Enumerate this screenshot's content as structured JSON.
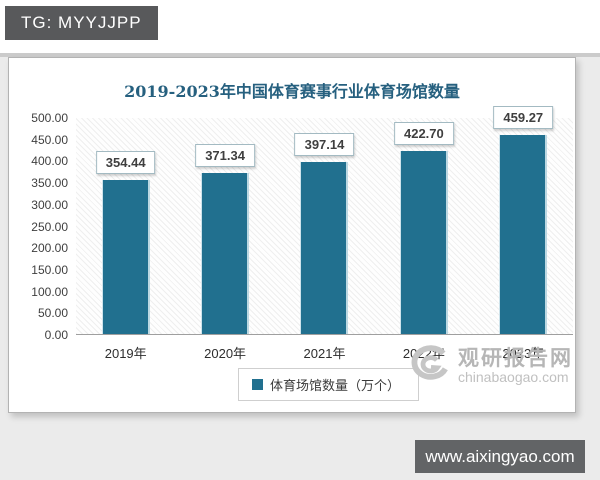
{
  "badges": {
    "tg": "TG: MYYJJPP",
    "url": "www.aixingyao.com"
  },
  "watermark": {
    "name": "观研报告网",
    "domain": "chinabaogao.com"
  },
  "chart_data": {
    "type": "bar",
    "title": "2019-2023年中国体育赛事行业体育场馆数量",
    "categories": [
      "2019年",
      "2020年",
      "2021年",
      "2022年",
      "2023年"
    ],
    "values": [
      354.44,
      371.34,
      397.14,
      422.7,
      459.27
    ],
    "ylim": [
      0,
      500
    ],
    "ytick_step": 50,
    "ytick_decimals": 2,
    "grid": false,
    "value_labels": true,
    "legend": {
      "label": "体育场馆数量（万个）",
      "position": "bottom"
    },
    "bar_color": "#21708F"
  },
  "colors": {
    "accent": "#21708F",
    "title": "#26607F",
    "badge_bg": "#58595B",
    "page_bg": "#EBEBEB"
  }
}
